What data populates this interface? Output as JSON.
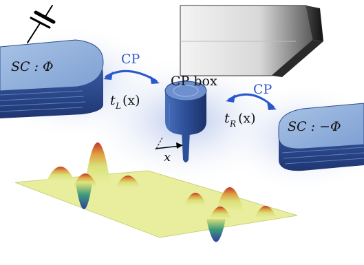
{
  "labels": {
    "sc_left": "SC : Φ",
    "sc_right": "SC : −Φ",
    "cp_box": "CP box",
    "cp_left": "CP",
    "cp_right": "CP",
    "tunnel_left": "t",
    "tunnel_left_sub": "L",
    "tunnel_left_arg": "(x)",
    "tunnel_right": "t",
    "tunnel_right_sub": "R",
    "tunnel_right_arg": "(x)",
    "axis_x": "x"
  },
  "colors": {
    "electrode_top": "#8fb0da",
    "electrode_side": "#2e4d8f",
    "cp_arrow": "#2b57c9",
    "glow": "#b9c8ec",
    "sheet": "#e8ee9a",
    "peak_high": "#c0392b",
    "peak_low": "#2f3fa0"
  },
  "icons": {
    "battery": "battery-symbol-icon",
    "gate": "gate-electrode-icon",
    "tip": "stm-tip-icon"
  }
}
